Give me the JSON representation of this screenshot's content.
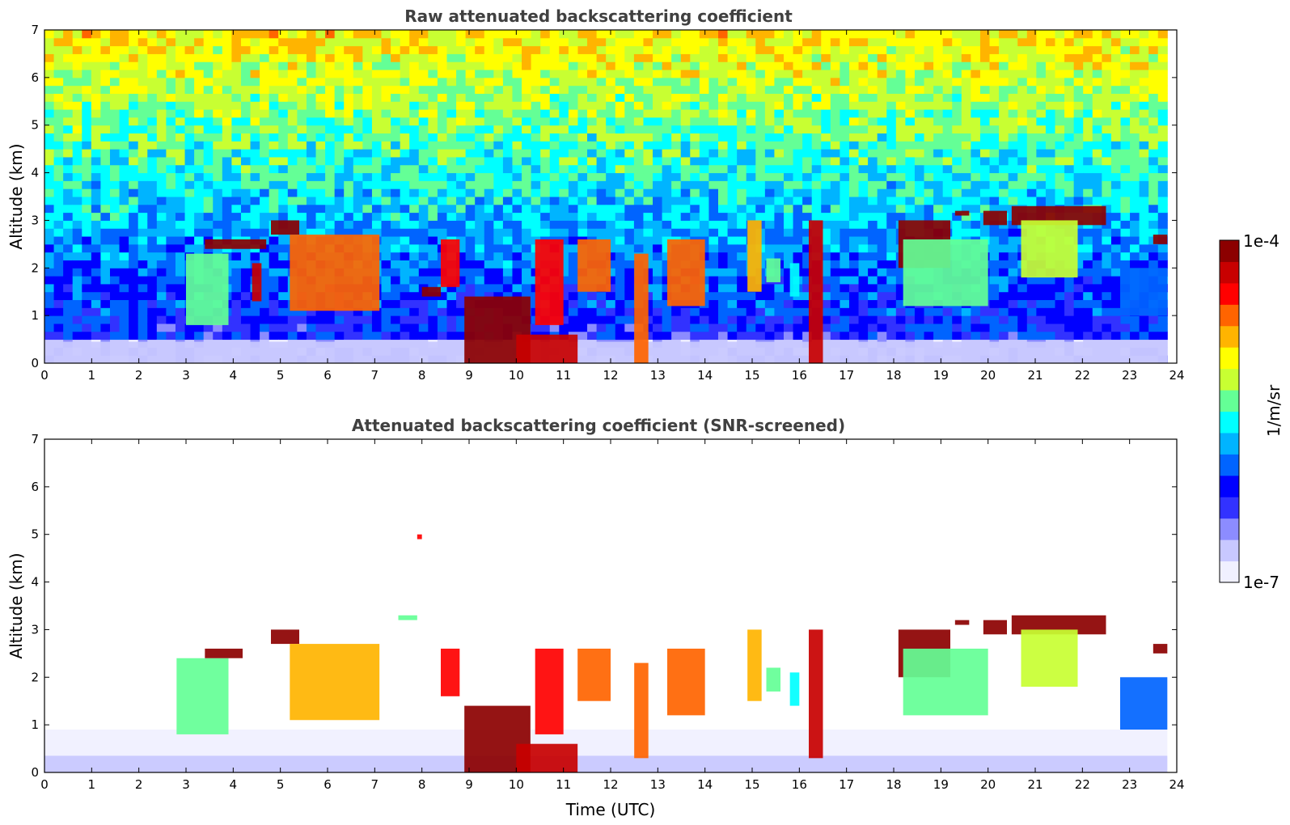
{
  "chart_data": [
    {
      "type": "heatmap",
      "title": "Raw attenuated backscattering coefficient",
      "xlabel": "",
      "ylabel": "Altitude (km)",
      "xlim": [
        0,
        24
      ],
      "ylim": [
        0,
        7
      ],
      "xticks": [
        "0",
        "1",
        "2",
        "3",
        "4",
        "5",
        "6",
        "7",
        "8",
        "9",
        "10",
        "11",
        "12",
        "13",
        "14",
        "15",
        "16",
        "17",
        "18",
        "19",
        "20",
        "21",
        "22",
        "23",
        "24"
      ],
      "yticks": [
        "0",
        "1",
        "2",
        "3",
        "4",
        "5",
        "6",
        "7"
      ],
      "data_end_hour": 23.8,
      "noise": true,
      "features": [
        {
          "name": "surface layer",
          "x": [
            0,
            23.8
          ],
          "y": [
            0,
            0.45
          ],
          "level": 0.12
        },
        {
          "name": "aerosol layer",
          "x": [
            3.0,
            3.9
          ],
          "y": [
            0.8,
            2.3
          ],
          "level": 0.55
        },
        {
          "name": "cloud",
          "x": [
            3.4,
            4.7
          ],
          "y": [
            2.4,
            2.6
          ],
          "level": 0.98
        },
        {
          "name": "aerosol",
          "x": [
            4.4,
            4.6
          ],
          "y": [
            1.3,
            2.1
          ],
          "level": 0.9
        },
        {
          "name": "cloud",
          "x": [
            4.8,
            5.4
          ],
          "y": [
            2.7,
            3.0
          ],
          "level": 0.95
        },
        {
          "name": "aerosol plume",
          "x": [
            5.2,
            7.1
          ],
          "y": [
            1.1,
            2.7
          ],
          "level": 0.75
        },
        {
          "name": "aerosol",
          "x": [
            8.0,
            8.4
          ],
          "y": [
            1.4,
            1.6
          ],
          "level": 0.95
        },
        {
          "name": "aerosol",
          "x": [
            8.4,
            8.8
          ],
          "y": [
            1.6,
            2.6
          ],
          "level": 0.85
        },
        {
          "name": "boundary layer plume",
          "x": [
            8.9,
            10.3
          ],
          "y": [
            0,
            1.4
          ],
          "level": 0.95
        },
        {
          "name": "boundary layer plume",
          "x": [
            10.0,
            11.3
          ],
          "y": [
            0,
            0.6
          ],
          "level": 0.9
        },
        {
          "name": "aerosol plume",
          "x": [
            10.4,
            11.0
          ],
          "y": [
            0.8,
            2.6
          ],
          "level": 0.85
        },
        {
          "name": "aerosol plume",
          "x": [
            11.3,
            12.0
          ],
          "y": [
            1.5,
            2.6
          ],
          "level": 0.8
        },
        {
          "name": "aerosol",
          "x": [
            12.5,
            12.8
          ],
          "y": [
            0,
            2.3
          ],
          "level": 0.75
        },
        {
          "name": "aerosol plume",
          "x": [
            13.2,
            14.0
          ],
          "y": [
            1.2,
            2.6
          ],
          "level": 0.8
        },
        {
          "name": "aerosol",
          "x": [
            14.9,
            15.2
          ],
          "y": [
            1.5,
            3.0
          ],
          "level": 0.7
        },
        {
          "name": "aerosol",
          "x": [
            15.3,
            15.6
          ],
          "y": [
            1.7,
            2.2
          ],
          "level": 0.55
        },
        {
          "name": "aerosol",
          "x": [
            15.8,
            16.0
          ],
          "y": [
            1.4,
            2.1
          ],
          "level": 0.45
        },
        {
          "name": "cloud column",
          "x": [
            16.2,
            16.5
          ],
          "y": [
            0,
            3.0
          ],
          "level": 0.9
        },
        {
          "name": "cloud",
          "x": [
            18.1,
            19.2
          ],
          "y": [
            2.0,
            3.0
          ],
          "level": 0.95
        },
        {
          "name": "aerosol plume",
          "x": [
            18.2,
            20.0
          ],
          "y": [
            1.2,
            2.6
          ],
          "level": 0.55
        },
        {
          "name": "cloud",
          "x": [
            19.3,
            19.6
          ],
          "y": [
            3.1,
            3.2
          ],
          "level": 0.98
        },
        {
          "name": "cloud",
          "x": [
            19.9,
            20.4
          ],
          "y": [
            2.9,
            3.2
          ],
          "level": 0.95
        },
        {
          "name": "cloud",
          "x": [
            20.5,
            22.5
          ],
          "y": [
            2.9,
            3.3
          ],
          "level": 0.98
        },
        {
          "name": "aerosol plume",
          "x": [
            20.7,
            21.9
          ],
          "y": [
            1.8,
            3.0
          ],
          "level": 0.6
        },
        {
          "name": "aerosol plume",
          "x": [
            22.8,
            23.8
          ],
          "y": [
            1.0,
            2.0
          ],
          "level": 0.35
        },
        {
          "name": "aerosol",
          "x": [
            23.5,
            23.8
          ],
          "y": [
            2.5,
            2.7
          ],
          "level": 0.95
        }
      ]
    },
    {
      "type": "heatmap",
      "title": "Attenuated backscattering coefficient (SNR-screened)",
      "xlabel": "Time (UTC)",
      "ylabel": "Altitude (km)",
      "xlim": [
        0,
        24
      ],
      "ylim": [
        0,
        7
      ],
      "xticks": [
        "0",
        "1",
        "2",
        "3",
        "4",
        "5",
        "6",
        "7",
        "8",
        "9",
        "10",
        "11",
        "12",
        "13",
        "14",
        "15",
        "16",
        "17",
        "18",
        "19",
        "20",
        "21",
        "22",
        "23",
        "24"
      ],
      "yticks": [
        "0",
        "1",
        "2",
        "3",
        "4",
        "5",
        "6",
        "7"
      ],
      "data_end_hour": 23.8,
      "noise": false,
      "features": [
        {
          "name": "surface layer",
          "x": [
            0,
            23.8
          ],
          "y": [
            0,
            0.9
          ],
          "level": 0.06
        },
        {
          "name": "surface layer core",
          "x": [
            0,
            23.8
          ],
          "y": [
            0,
            0.35
          ],
          "level": 0.12
        },
        {
          "name": "aerosol",
          "x": [
            2.8,
            3.9
          ],
          "y": [
            0.8,
            2.4
          ],
          "level": 0.55
        },
        {
          "name": "cloud",
          "x": [
            3.4,
            4.2
          ],
          "y": [
            2.4,
            2.6
          ],
          "level": 0.99
        },
        {
          "name": "cloud",
          "x": [
            4.8,
            5.4
          ],
          "y": [
            2.7,
            3.0
          ],
          "level": 0.99
        },
        {
          "name": "aerosol plume",
          "x": [
            5.2,
            7.1
          ],
          "y": [
            1.1,
            2.7
          ],
          "level": 0.72
        },
        {
          "name": "aerosol",
          "x": [
            7.5,
            7.9
          ],
          "y": [
            3.2,
            3.3
          ],
          "level": 0.5
        },
        {
          "name": "aerosol",
          "x": [
            7.9,
            8.0
          ],
          "y": [
            4.9,
            5.0
          ],
          "level": 0.85
        },
        {
          "name": "aerosol",
          "x": [
            8.4,
            8.8
          ],
          "y": [
            1.6,
            2.6
          ],
          "level": 0.85
        },
        {
          "name": "boundary layer plume",
          "x": [
            8.9,
            10.3
          ],
          "y": [
            0,
            1.4
          ],
          "level": 0.95
        },
        {
          "name": "boundary layer plume",
          "x": [
            10.0,
            11.3
          ],
          "y": [
            0,
            0.6
          ],
          "level": 0.9
        },
        {
          "name": "aerosol plume",
          "x": [
            10.4,
            11.0
          ],
          "y": [
            0.8,
            2.6
          ],
          "level": 0.85
        },
        {
          "name": "aerosol plume",
          "x": [
            11.3,
            12.0
          ],
          "y": [
            1.5,
            2.6
          ],
          "level": 0.8
        },
        {
          "name": "aerosol",
          "x": [
            12.5,
            12.8
          ],
          "y": [
            0.3,
            2.3
          ],
          "level": 0.75
        },
        {
          "name": "aerosol plume",
          "x": [
            13.2,
            14.0
          ],
          "y": [
            1.2,
            2.6
          ],
          "level": 0.8
        },
        {
          "name": "aerosol",
          "x": [
            14.9,
            15.2
          ],
          "y": [
            1.5,
            3.0
          ],
          "level": 0.7
        },
        {
          "name": "aerosol",
          "x": [
            15.3,
            15.6
          ],
          "y": [
            1.7,
            2.2
          ],
          "level": 0.55
        },
        {
          "name": "aerosol",
          "x": [
            15.8,
            16.0
          ],
          "y": [
            1.4,
            2.1
          ],
          "level": 0.45
        },
        {
          "name": "cloud column",
          "x": [
            16.2,
            16.5
          ],
          "y": [
            0.3,
            3.0
          ],
          "level": 0.9
        },
        {
          "name": "cloud",
          "x": [
            18.1,
            19.2
          ],
          "y": [
            2.0,
            3.0
          ],
          "level": 0.99
        },
        {
          "name": "aerosol plume",
          "x": [
            18.2,
            20.0
          ],
          "y": [
            1.2,
            2.6
          ],
          "level": 0.55
        },
        {
          "name": "cloud",
          "x": [
            19.3,
            19.6
          ],
          "y": [
            3.1,
            3.2
          ],
          "level": 0.99
        },
        {
          "name": "cloud",
          "x": [
            19.9,
            20.4
          ],
          "y": [
            2.9,
            3.2
          ],
          "level": 0.99
        },
        {
          "name": "cloud",
          "x": [
            20.5,
            22.5
          ],
          "y": [
            2.9,
            3.3
          ],
          "level": 0.99
        },
        {
          "name": "aerosol plume",
          "x": [
            20.7,
            21.9
          ],
          "y": [
            1.8,
            3.0
          ],
          "level": 0.6
        },
        {
          "name": "aerosol plume",
          "x": [
            22.8,
            23.8
          ],
          "y": [
            0.9,
            2.0
          ],
          "level": 0.35
        },
        {
          "name": "aerosol",
          "x": [
            23.5,
            23.8
          ],
          "y": [
            2.5,
            2.7
          ],
          "level": 0.99
        }
      ]
    }
  ],
  "colorbar": {
    "label": "1/m/sr",
    "max_label": "1e-4",
    "min_label": "1e-7",
    "colors": [
      "#f0f0ff",
      "#c8c8ff",
      "#8c8cff",
      "#3232ff",
      "#0000ff",
      "#0064ff",
      "#00b4ff",
      "#00ffff",
      "#64ff96",
      "#c8ff32",
      "#ffff00",
      "#ffb400",
      "#ff6400",
      "#ff0000",
      "#c80000",
      "#8c0000"
    ]
  }
}
